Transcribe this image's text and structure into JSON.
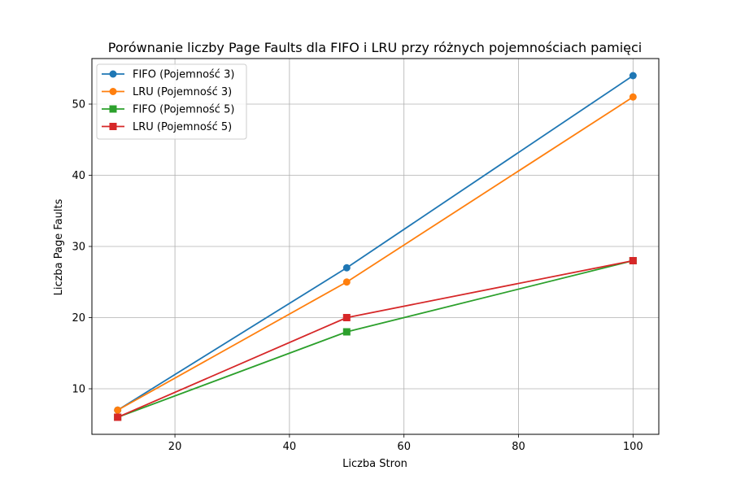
{
  "chart_data": {
    "type": "line",
    "title": "Porównanie liczby Page Faults dla FIFO i LRU przy różnych pojemnościach pamięci",
    "xlabel": "Liczba Stron",
    "ylabel": "Liczba Page Faults",
    "xlim": [
      5.5,
      104.5
    ],
    "ylim": [
      3.6,
      56.4
    ],
    "xticks": [
      20,
      40,
      60,
      80,
      100
    ],
    "yticks": [
      10,
      20,
      30,
      40,
      50
    ],
    "grid": true,
    "legend_position": "top-left",
    "x": [
      10,
      50,
      100
    ],
    "series": [
      {
        "name": "FIFO (Pojemność 3)",
        "values": [
          7,
          27,
          54
        ],
        "color": "#1f77b4",
        "marker": "circle"
      },
      {
        "name": "LRU (Pojemność 3)",
        "values": [
          7,
          25,
          51
        ],
        "color": "#ff7f0e",
        "marker": "circle"
      },
      {
        "name": "FIFO (Pojemność 5)",
        "values": [
          6,
          18,
          28
        ],
        "color": "#2ca02c",
        "marker": "square"
      },
      {
        "name": "LRU (Pojemność 5)",
        "values": [
          6,
          20,
          28
        ],
        "color": "#d62728",
        "marker": "square"
      }
    ]
  }
}
